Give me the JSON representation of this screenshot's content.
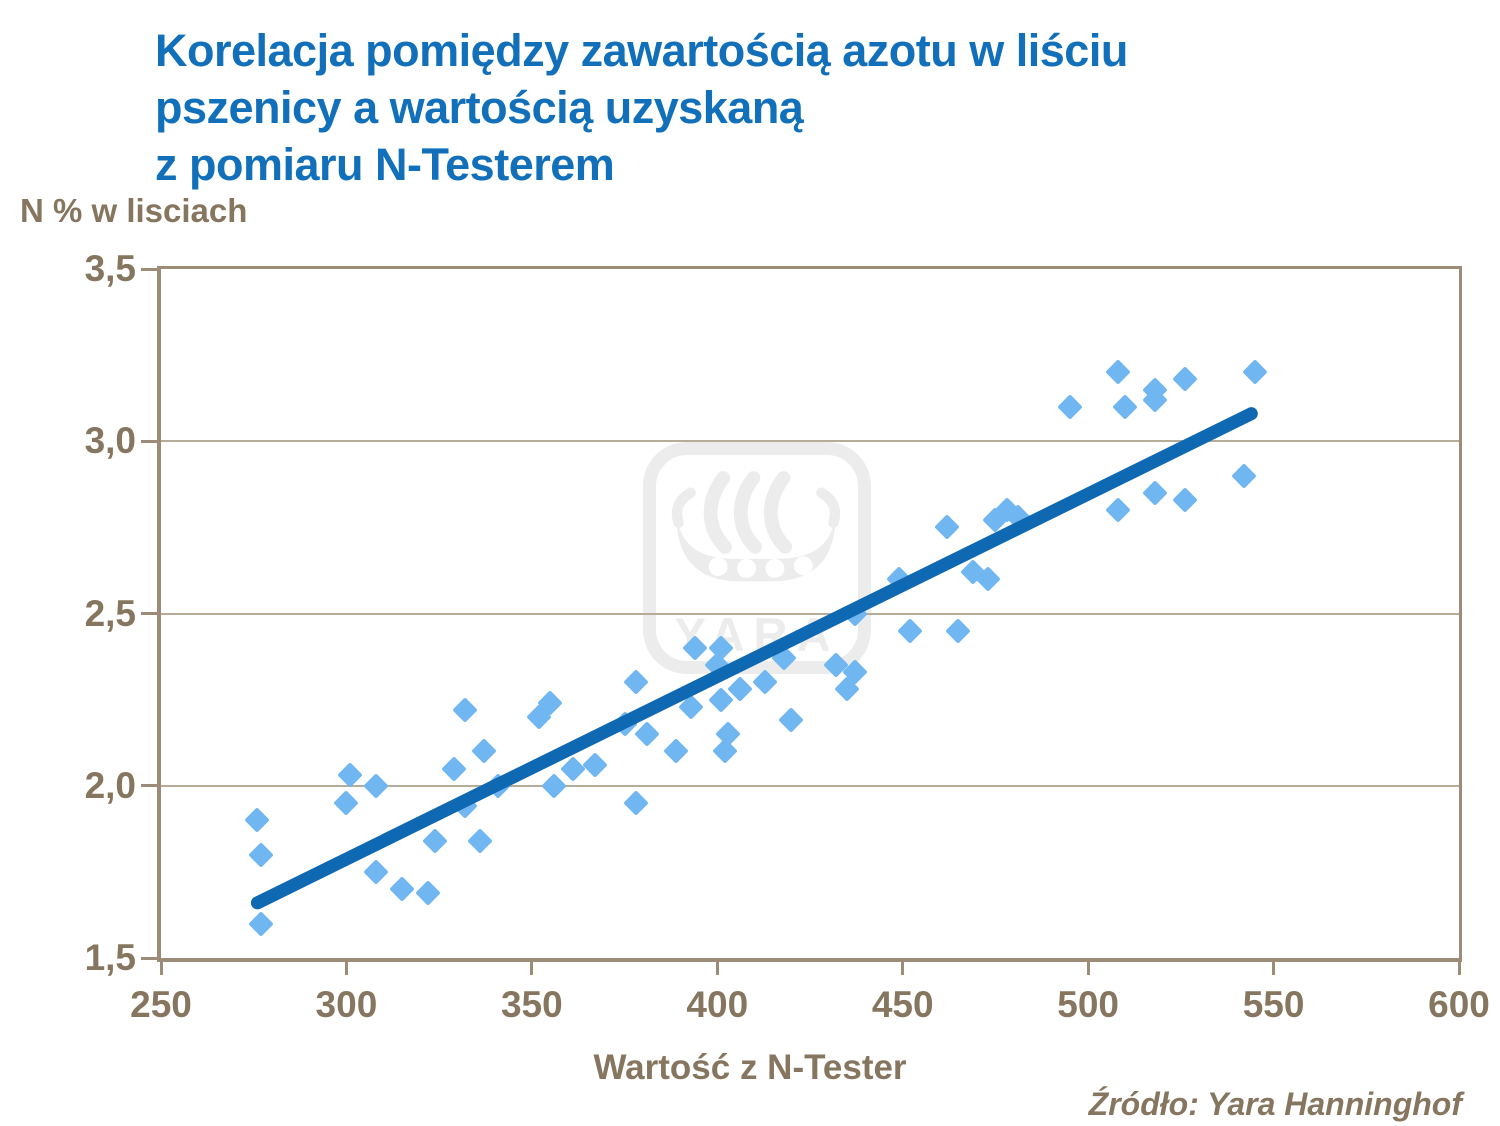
{
  "title_lines": [
    "Korelacja pomiędzy zawartością azotu w liściu",
    "pszenicy a wartością uzyskaną",
    "z pomiaru N-Testerem"
  ],
  "y_axis_title": "N % w lisciach",
  "x_axis_title": "Wartość z N-Tester",
  "source": "Źródło: Yara Hanninghof",
  "watermark_text": "YARA",
  "colors": {
    "title": "#1170B9",
    "axis_text": "#87765F",
    "axis_line": "#9C8C77",
    "gridline": "#B7AB9A",
    "point_fill": "#70B6F1",
    "trend_line": "#0F68B2",
    "watermark": "#ECECEC"
  },
  "chart_data": {
    "type": "scatter",
    "title": "Korelacja pomiędzy zawartością azotu w liściu pszenicy a wartością uzyskaną z pomiaru N-Testerem",
    "xlabel": "Wartość z N-Tester",
    "ylabel": "N % w lisciach",
    "xlim": [
      250,
      600
    ],
    "ylim": [
      1.5,
      3.5
    ],
    "grid": "horizontal",
    "legend": "none",
    "x_ticks": [
      {
        "value": 250,
        "label": "250"
      },
      {
        "value": 300,
        "label": "300"
      },
      {
        "value": 350,
        "label": "350"
      },
      {
        "value": 400,
        "label": "400"
      },
      {
        "value": 450,
        "label": "450"
      },
      {
        "value": 500,
        "label": "500"
      },
      {
        "value": 550,
        "label": "550"
      },
      {
        "value": 600,
        "label": "600"
      }
    ],
    "y_ticks": [
      {
        "value": 3.5,
        "label": "3,5",
        "gridline": false
      },
      {
        "value": 3.0,
        "label": "3,0",
        "gridline": true
      },
      {
        "value": 2.5,
        "label": "2,5",
        "gridline": true
      },
      {
        "value": 2.0,
        "label": "2,0",
        "gridline": true
      },
      {
        "value": 1.5,
        "label": "1,5",
        "gridline": false
      }
    ],
    "points": [
      [
        276,
        1.9
      ],
      [
        277,
        1.8
      ],
      [
        277,
        1.6
      ],
      [
        300,
        1.95
      ],
      [
        301,
        2.03
      ],
      [
        308,
        2.0
      ],
      [
        308,
        1.75
      ],
      [
        315,
        1.7
      ],
      [
        322,
        1.69
      ],
      [
        324,
        1.84
      ],
      [
        329,
        2.05
      ],
      [
        332,
        2.22
      ],
      [
        332,
        1.94
      ],
      [
        336,
        1.84
      ],
      [
        337,
        2.1
      ],
      [
        341,
        2.0
      ],
      [
        352,
        2.2
      ],
      [
        355,
        2.24
      ],
      [
        356,
        2.0
      ],
      [
        361,
        2.05
      ],
      [
        367,
        2.06
      ],
      [
        375,
        2.18
      ],
      [
        378,
        2.3
      ],
      [
        378,
        1.95
      ],
      [
        381,
        2.15
      ],
      [
        389,
        2.1
      ],
      [
        393,
        2.23
      ],
      [
        394,
        2.4
      ],
      [
        401,
        2.4
      ],
      [
        400,
        2.35
      ],
      [
        401,
        2.25
      ],
      [
        403,
        2.15
      ],
      [
        402,
        2.1
      ],
      [
        406,
        2.28
      ],
      [
        413,
        2.3
      ],
      [
        418,
        2.37
      ],
      [
        420,
        2.19
      ],
      [
        432,
        2.35
      ],
      [
        437,
        2.33
      ],
      [
        435,
        2.28
      ],
      [
        437,
        2.5
      ],
      [
        449,
        2.6
      ],
      [
        452,
        2.45
      ],
      [
        465,
        2.45
      ],
      [
        462,
        2.75
      ],
      [
        469,
        2.62
      ],
      [
        473,
        2.6
      ],
      [
        475,
        2.77
      ],
      [
        478,
        2.8
      ],
      [
        481,
        2.78
      ],
      [
        495,
        3.1
      ],
      [
        508,
        3.2
      ],
      [
        508,
        2.8
      ],
      [
        510,
        3.1
      ],
      [
        518,
        3.15
      ],
      [
        518,
        3.12
      ],
      [
        518,
        2.85
      ],
      [
        526,
        3.18
      ],
      [
        526,
        2.83
      ],
      [
        542,
        2.9
      ],
      [
        545,
        3.2
      ]
    ],
    "trend_line": {
      "x1": 276,
      "y1": 1.66,
      "x2": 544,
      "y2": 3.08
    }
  }
}
